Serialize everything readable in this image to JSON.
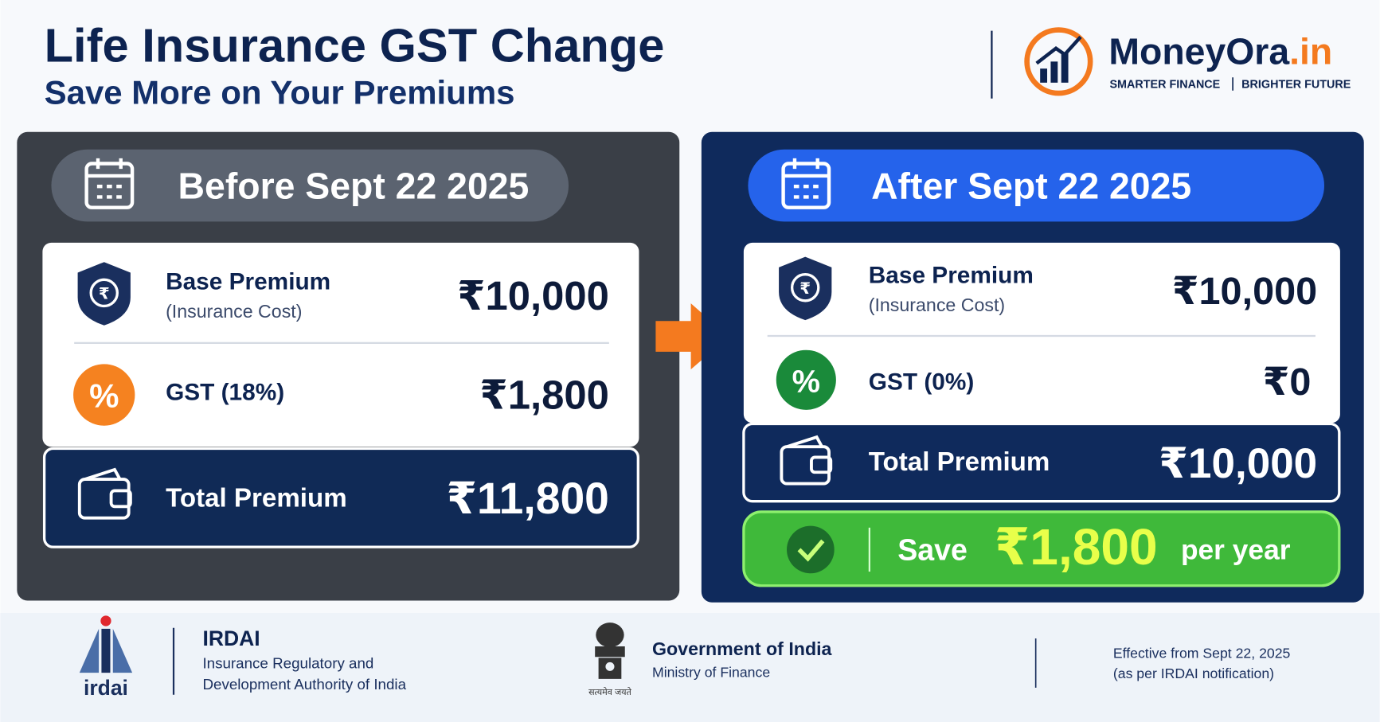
{
  "header": {
    "title": "Life Insurance GST Change",
    "subtitle": "Save More on Your Premiums"
  },
  "brand": {
    "name": "MoneyOra",
    "domain": ".in",
    "tagline_left": "SMARTER FINANCE",
    "tagline_right": "BRIGHTER FUTURE"
  },
  "before": {
    "heading": "Before Sept 22 2025",
    "rows": [
      {
        "label": "Base Premium",
        "sublabel": "(Insurance Cost)",
        "amount": "₹10,000"
      },
      {
        "label": "GST (18%)",
        "amount": "₹1,800"
      }
    ],
    "total": {
      "label": "Total Premium",
      "amount": "₹11,800"
    }
  },
  "after": {
    "heading": "After Sept 22 2025",
    "rows": [
      {
        "label": "Base Premium",
        "sublabel": "(Insurance Cost)",
        "amount": "₹10,000"
      },
      {
        "label": "GST (0%)",
        "amount": "₹0"
      }
    ],
    "total": {
      "label": "Total Premium",
      "amount": "₹10,000"
    },
    "savings": {
      "prefix": "Save",
      "amount": "₹1,800",
      "suffix": "per year"
    }
  },
  "footer": {
    "irdai": {
      "logo": "irdai",
      "name": "IRDAI",
      "line1": "Insurance Regulatory and",
      "line2": "Development Authority of India"
    },
    "government": {
      "motto": "सत्यमेव जयते",
      "name": "Government of India",
      "ministry": "Ministry of Finance"
    },
    "note": {
      "line1": "Effective from Sept 22, 2025",
      "line2": "(as per IRDAI notification)"
    }
  }
}
